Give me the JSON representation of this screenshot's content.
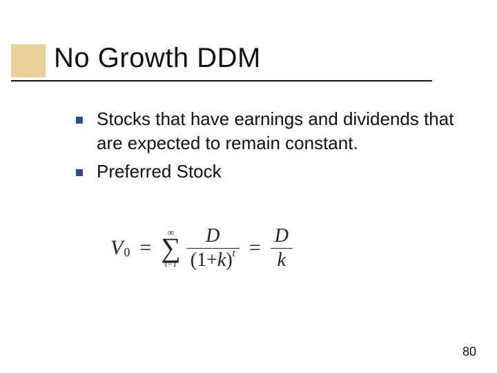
{
  "colors": {
    "accent_box": "#e8d098",
    "bullet_square": "#2d4a9a",
    "text": "#111111",
    "underline": "#111111",
    "background": "#ffffff"
  },
  "title": "No Growth DDM",
  "bullets": [
    {
      "text": "Stocks that have earnings and dividends that are expected to remain constant."
    },
    {
      "text": "Preferred Stock"
    }
  ],
  "formula": {
    "lhs_var": "V",
    "lhs_sub": "0",
    "eq": "=",
    "sigma_top": "∞",
    "sigma": "∑",
    "sigma_bot_lhs": "t",
    "sigma_bot_eq": "=",
    "sigma_bot_rhs": "1",
    "frac1_num": "D",
    "frac1_den_open": "(",
    "frac1_den_one": "1",
    "frac1_den_plus": "+",
    "frac1_den_k": "k",
    "frac1_den_close": ")",
    "frac1_den_sup": "t",
    "eq2": "=",
    "frac2_num": "D",
    "frac2_den": "k"
  },
  "page_number": "80"
}
